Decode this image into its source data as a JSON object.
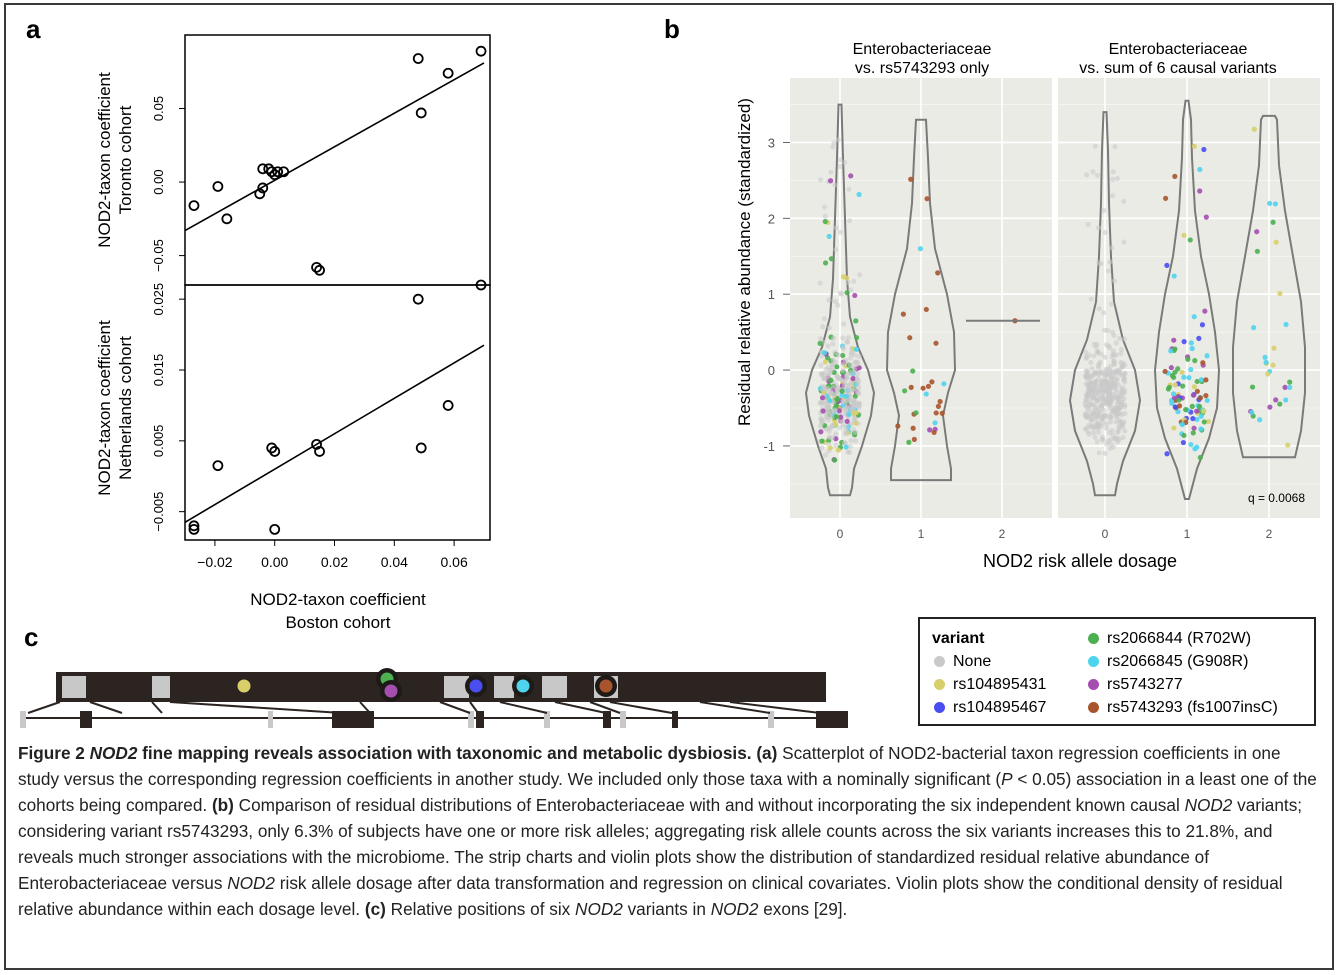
{
  "panel_labels": {
    "a": "a",
    "b": "b",
    "c": "c"
  },
  "colors": {
    "none": "#c9c9c9",
    "rs104895431": "#d8cf6a",
    "rs104895467": "#4a4ef0",
    "rs2066844": "#4caf50",
    "rs2066845": "#4fd4ee",
    "rs5743277": "#a44fb0",
    "rs5743293": "#a8552e",
    "panel_bg": "#ebebe6"
  },
  "panel_a": {
    "xlabel_line1": "NOD2-taxon coefficient",
    "xlabel_line2": "Boston cohort"
  },
  "panel_b": {
    "ylabel": "Residual relative abundance (standardized)",
    "xlabel": "NOD2 risk allele dosage",
    "facet1_line1": "Enterobacteriaceae",
    "facet1_line2": "vs. rs5743293 only",
    "facet2_line1": "Enterobacteriaceae",
    "facet2_line2": "vs. sum of 6 causal variants",
    "q_label": "q = 0.0068"
  },
  "legend": {
    "title": "variant",
    "items": [
      {
        "label": "None",
        "color_key": "none"
      },
      {
        "label": "rs104895431",
        "color_key": "rs104895431"
      },
      {
        "label": "rs104895467",
        "color_key": "rs104895467"
      },
      {
        "label": "rs2066844 (R702W)",
        "color_key": "rs2066844"
      },
      {
        "label": "rs2066845  (G908R)",
        "color_key": "rs2066845"
      },
      {
        "label": "rs5743277",
        "color_key": "rs5743277"
      },
      {
        "label": "rs5743293 (fs1007insC)",
        "color_key": "rs5743293"
      }
    ]
  },
  "caption": {
    "figure_label": "Figure 2",
    "title_italic": "NOD2",
    "title_rest": " fine mapping reveals association with taxonomic and metabolic dysbiosis.",
    "a_label": "(a)",
    "a_text1": " Scatterplot of NOD2-bacterial taxon regression coefficients in one study versus the corresponding regression coefficients in another study. We included only those taxa with a nominally significant (",
    "a_p": "P",
    "a_text2": " < 0.05) association in a least one of the cohorts being compared. ",
    "b_label": "(b)",
    "b_text1": " Comparison of residual distributions of Enterobacteriaceae with and without incorporating the six independent known causal ",
    "b_nod2": "NOD2",
    "b_text2": " variants; considering variant rs5743293, only 6.3% of subjects have one or more risk alleles; aggregating risk allele counts across the six variants increases this to 21.8%, and reveals much stronger associations with the microbiome. The strip charts and violin plots show the distribution of standardized residual relative abundance of Enterobacteriaceae versus ",
    "b_nod2b": "NOD2",
    "b_text3": " risk allele dosage after data transformation and regression on clinical covariates. Violin plots show the conditional density of residual relative abundance within each dosage level. ",
    "c_label": "(c)",
    "c_text1": " Relative positions of six ",
    "c_nod2": "NOD2",
    "c_text2": " variants in ",
    "c_nod2b": "NOD2",
    "c_text3": " exons [29]."
  },
  "chart_data": [
    {
      "type": "scatter",
      "title": "",
      "xlabel": "NOD2-taxon coefficient\nBoston cohort",
      "ylabel": "NOD2-taxon coefficient\nToronto cohort",
      "xlim": [
        -0.03,
        0.072
      ],
      "ylim": [
        -0.07,
        0.1
      ],
      "x_ticks": [
        -0.02,
        0.0,
        0.02,
        0.04,
        0.06
      ],
      "y_ticks": [
        -0.05,
        0.0,
        0.05
      ],
      "y_tick_labels": [
        "−0.05",
        "0.00",
        "0.05"
      ],
      "points": {
        "x": [
          0.048,
          0.069,
          0.058,
          0.049,
          -0.027,
          -0.019,
          -0.016,
          -0.005,
          -0.004,
          -0.004,
          -0.002,
          -0.001,
          0.0,
          0.001,
          0.003,
          0.014,
          0.015
        ],
        "y": [
          0.084,
          0.089,
          0.074,
          0.047,
          -0.016,
          -0.003,
          -0.025,
          -0.008,
          0.009,
          -0.004,
          0.009,
          0.007,
          0.005,
          0.007,
          0.007,
          -0.058,
          -0.06
        ]
      },
      "fit_line": {
        "x": [
          -0.03,
          0.07
        ],
        "y": [
          -0.033,
          0.081
        ]
      }
    },
    {
      "type": "scatter",
      "title": "",
      "xlabel": "NOD2-taxon coefficient\nBoston cohort",
      "ylabel": "NOD2-taxon coefficient\nNetherlands cohort",
      "xlim": [
        -0.03,
        0.072
      ],
      "ylim": [
        -0.009,
        0.027
      ],
      "x_ticks": [
        -0.02,
        0.0,
        0.02,
        0.04,
        0.06
      ],
      "x_tick_labels": [
        "−0.02",
        "0.00",
        "0.02",
        "0.04",
        "0.06"
      ],
      "y_ticks": [
        -0.005,
        0.005,
        0.015,
        0.025
      ],
      "y_tick_labels": [
        "−0.005",
        "0.005",
        "0.015",
        "0.025"
      ],
      "points": {
        "x": [
          0.048,
          0.069,
          0.058,
          0.049,
          -0.027,
          -0.027,
          -0.019,
          -0.001,
          0.0,
          0.0,
          0.014,
          0.015
        ],
        "y": [
          0.025,
          0.027,
          0.01,
          0.004,
          -0.007,
          -0.0075,
          0.0015,
          0.004,
          0.0035,
          -0.0075,
          0.0045,
          0.0035
        ]
      },
      "fit_line": {
        "x": [
          -0.03,
          0.07
        ],
        "y": [
          -0.0065,
          0.0185
        ]
      }
    },
    {
      "type": "scatter",
      "title": "",
      "xlabel": "NOD2 risk allele dosage",
      "ylabel": "Residual relative abundance (standardized)",
      "facets": [
        "Enterobacteriaceae\nvs. rs5743293 only",
        "Enterobacteriaceae\nvs. sum of 6 causal variants"
      ],
      "x_categories": [
        0,
        1,
        2
      ],
      "ylim": [
        -1.95,
        3.85
      ],
      "y_ticks": [
        -1,
        0,
        1,
        2,
        3
      ],
      "grid": true,
      "annotation": "q = 0.0068",
      "notes": "Jittered strip chart with violin overlays; facet 1 shows n≈30 subjects at dosage 1 and 1 subject at dosage 2 (value ≈0.65); facet 2 shows ≈110 at dosage 1 and ≈30 at dosage 2"
    }
  ]
}
